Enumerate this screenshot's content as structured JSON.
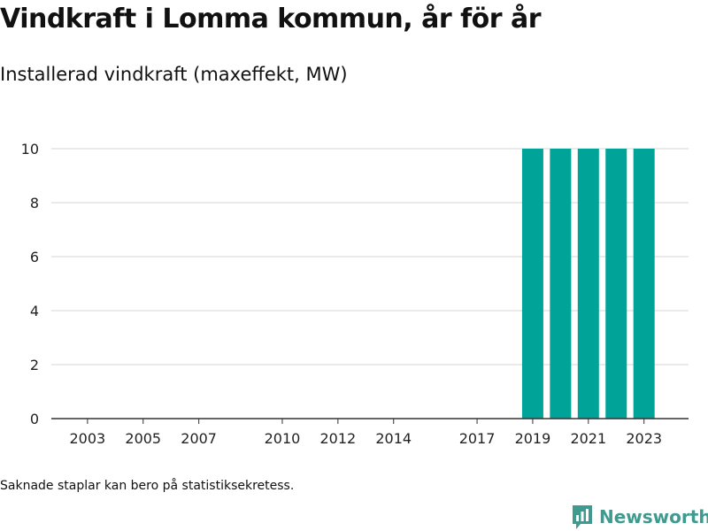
{
  "header": {
    "title": "Vindkraft i Lomma kommun, år för år",
    "subtitle": "Installerad vindkraft (maxeffekt, MW)"
  },
  "footnote": "Saknade staplar kan bero på statistiksekretess.",
  "brand": {
    "name": "Newsworthy",
    "color": "#3f9a8f"
  },
  "chart_data": {
    "type": "bar",
    "x": [
      2019,
      2020,
      2021,
      2022,
      2023
    ],
    "values": [
      10,
      10,
      10,
      10,
      10
    ],
    "xlim": [
      2001.7,
      2024.6
    ],
    "ylim": [
      0,
      10
    ],
    "x_ticks": [
      "2003",
      "2005",
      "2007",
      "2010",
      "2012",
      "2014",
      "2017",
      "2019",
      "2021",
      "2023"
    ],
    "y_ticks": [
      "0",
      "2",
      "4",
      "6",
      "8",
      "10"
    ],
    "bar_color": "#00a398",
    "grid": true
  }
}
